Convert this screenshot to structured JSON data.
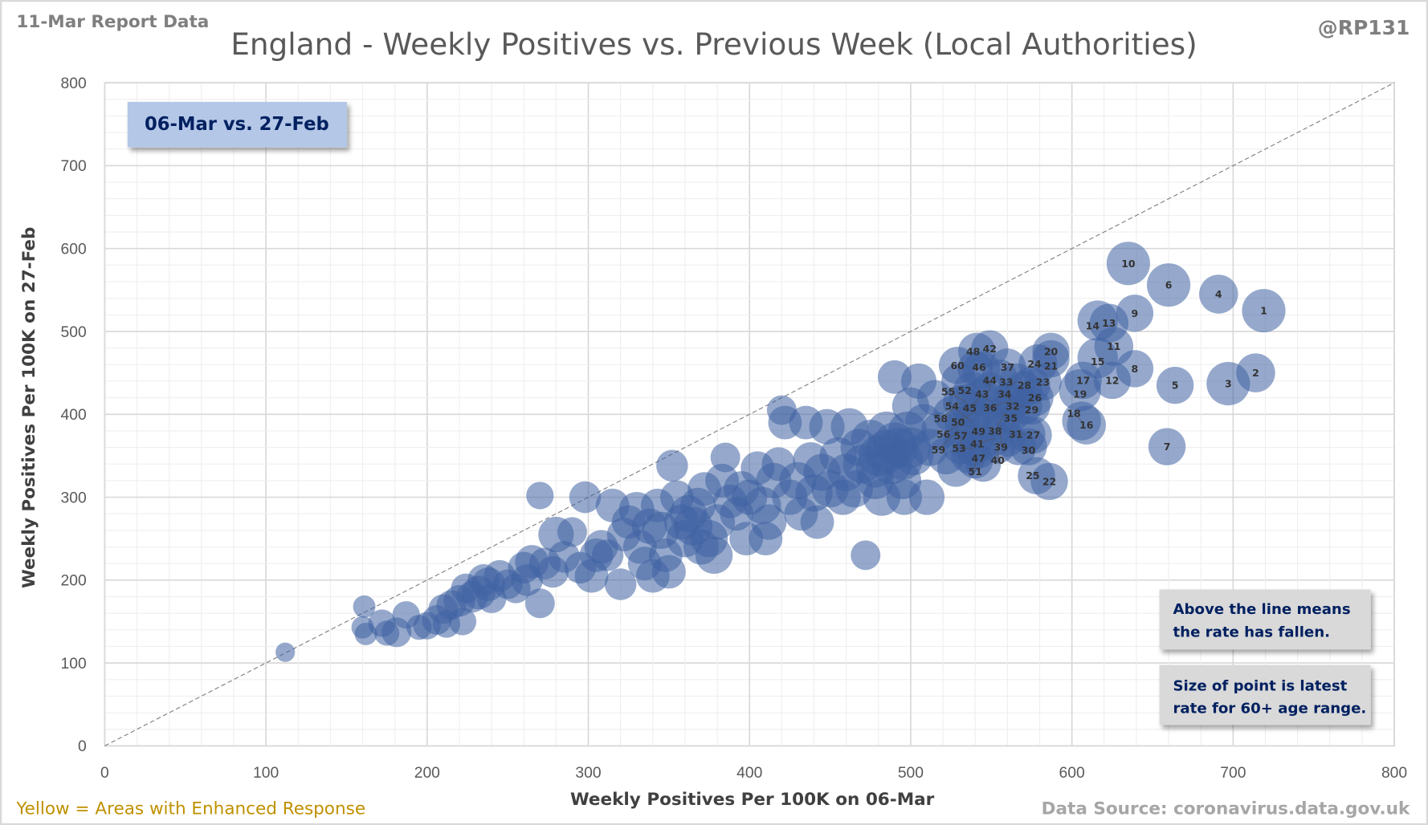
{
  "header": {
    "report_label": "11-Mar Report Data",
    "author": "@RP131"
  },
  "footer": {
    "note": "Yellow = Areas with Enhanced  Response",
    "source": "Data Source: coronavirus.data.gov.uk"
  },
  "colors": {
    "bubble": "#3f63a3",
    "annotation_box": "#b4c7e7",
    "note_box": "#d9d9d9",
    "annotation_text": "#002060",
    "footer_note": "#bf9000"
  },
  "chart_data": {
    "type": "scatter",
    "title": "England - Weekly Positives vs. Previous Week (Local Authorities)",
    "xlabel": "Weekly Positives Per 100K on 06-Mar",
    "ylabel": "Weekly Positives Per 100K on 27-Feb",
    "xlim": [
      0,
      800
    ],
    "ylim": [
      0,
      800
    ],
    "xticks": [
      "0",
      "100",
      "200",
      "300",
      "400",
      "500",
      "600",
      "700",
      "800"
    ],
    "yticks": [
      "0",
      "100",
      "200",
      "300",
      "400",
      "500",
      "600",
      "700",
      "800"
    ],
    "grid": true,
    "reference_line": "y = x (dashed)",
    "bubble_size_meaning": "latest rate for 60+ age range",
    "annotations": {
      "period": "06-Mar vs. 27-Feb",
      "above_line_1": "Above the line means",
      "above_line_2": "the rate has fallen.",
      "size_1": "Size of point is latest",
      "size_2": "rate for 60+ age range."
    },
    "labeled_points": [
      [
        719,
        525,
        150,
        "1"
      ],
      [
        714,
        450,
        120,
        "2"
      ],
      [
        697,
        437,
        150,
        "3"
      ],
      [
        691,
        545,
        120,
        "4"
      ],
      [
        664,
        435,
        110,
        "5"
      ],
      [
        660,
        556,
        150,
        "6"
      ],
      [
        659,
        361,
        110,
        "7"
      ],
      [
        639,
        455,
        110,
        "8"
      ],
      [
        639,
        522,
        110,
        "9"
      ],
      [
        635,
        582,
        150,
        "10"
      ],
      [
        626,
        482,
        120,
        "11"
      ],
      [
        625,
        441,
        110,
        "12"
      ],
      [
        623,
        510,
        120,
        "13"
      ],
      [
        616,
        513,
        130,
        "14"
      ],
      [
        616,
        468,
        130,
        "15"
      ],
      [
        609,
        387,
        120,
        "16"
      ],
      [
        607,
        441,
        110,
        "17"
      ],
      [
        606,
        392,
        120,
        "18"
      ],
      [
        605,
        429,
        140,
        "19"
      ],
      [
        587,
        476,
        110,
        "20"
      ],
      [
        587,
        467,
        110,
        "21"
      ],
      [
        586,
        319,
        110,
        "22"
      ],
      [
        582,
        439,
        110,
        "23"
      ],
      [
        579,
        461,
        120,
        "24"
      ],
      [
        578,
        326,
        110,
        "25"
      ],
      [
        577,
        420,
        110,
        "26"
      ],
      [
        576,
        375,
        110,
        "27"
      ],
      [
        575,
        435,
        110,
        "28"
      ],
      [
        575,
        410,
        110,
        "29"
      ],
      [
        573,
        361,
        110,
        "30"
      ],
      [
        572,
        376,
        110,
        "31"
      ],
      [
        570,
        410,
        110,
        "32"
      ],
      [
        566,
        439,
        110,
        "33"
      ],
      [
        563,
        415,
        110,
        "34"
      ],
      [
        562,
        400,
        110,
        "35"
      ],
      [
        560,
        415,
        110,
        "36"
      ],
      [
        560,
        457,
        110,
        "37"
      ],
      [
        559,
        403,
        110,
        "38"
      ],
      [
        556,
        387,
        110,
        "39"
      ],
      [
        554,
        362,
        100,
        "40"
      ],
      [
        552,
        371,
        100,
        "41"
      ],
      [
        549,
        479,
        110,
        "42"
      ],
      [
        549,
        415,
        110,
        "43"
      ],
      [
        549,
        428,
        110,
        "44"
      ],
      [
        543,
        420,
        110,
        "45"
      ],
      [
        544,
        454,
        110,
        "46"
      ],
      [
        542,
        356,
        100,
        "47"
      ],
      [
        541,
        476,
        110,
        "48"
      ],
      [
        542,
        375,
        100,
        "49"
      ],
      [
        541,
        404,
        110,
        "50"
      ],
      [
        540,
        344,
        100,
        "51"
      ],
      [
        538,
        429,
        110,
        "52"
      ],
      [
        539,
        359,
        100,
        "53"
      ],
      [
        538,
        391,
        110,
        "54"
      ],
      [
        535,
        414,
        110,
        "55"
      ],
      [
        532,
        389,
        100,
        "56"
      ],
      [
        531,
        361,
        100,
        "57"
      ],
      [
        531,
        414,
        100,
        "58"
      ],
      [
        530,
        382,
        100,
        "59"
      ],
      [
        529,
        459,
        110,
        "60"
      ]
    ],
    "other_points": [
      [
        112,
        113,
        30
      ],
      [
        161,
        168,
        40
      ],
      [
        160,
        143,
        40
      ],
      [
        162,
        135,
        40
      ],
      [
        172,
        148,
        60
      ],
      [
        175,
        136,
        50
      ],
      [
        181,
        137,
        70
      ],
      [
        187,
        158,
        60
      ],
      [
        195,
        143,
        50
      ],
      [
        200,
        145,
        60
      ],
      [
        206,
        152,
        70
      ],
      [
        210,
        165,
        70
      ],
      [
        212,
        147,
        60
      ],
      [
        215,
        170,
        70
      ],
      [
        220,
        175,
        80
      ],
      [
        222,
        150,
        60
      ],
      [
        224,
        190,
        70
      ],
      [
        228,
        180,
        80
      ],
      [
        232,
        185,
        90
      ],
      [
        235,
        200,
        80
      ],
      [
        238,
        195,
        90
      ],
      [
        240,
        178,
        70
      ],
      [
        245,
        205,
        80
      ],
      [
        250,
        195,
        70
      ],
      [
        255,
        190,
        70
      ],
      [
        260,
        215,
        80
      ],
      [
        262,
        200,
        80
      ],
      [
        265,
        222,
        90
      ],
      [
        270,
        172,
        70
      ],
      [
        270,
        302,
        60
      ],
      [
        273,
        220,
        80
      ],
      [
        278,
        210,
        80
      ],
      [
        280,
        255,
        100
      ],
      [
        285,
        228,
        80
      ],
      [
        290,
        258,
        70
      ],
      [
        295,
        215,
        80
      ],
      [
        298,
        300,
        80
      ],
      [
        302,
        205,
        90
      ],
      [
        305,
        230,
        90
      ],
      [
        308,
        240,
        90
      ],
      [
        312,
        230,
        80
      ],
      [
        315,
        290,
        90
      ],
      [
        320,
        195,
        80
      ],
      [
        322,
        255,
        90
      ],
      [
        325,
        270,
        90
      ],
      [
        330,
        285,
        100
      ],
      [
        332,
        240,
        90
      ],
      [
        335,
        220,
        90
      ],
      [
        338,
        265,
        100
      ],
      [
        340,
        205,
        90
      ],
      [
        343,
        290,
        90
      ],
      [
        345,
        260,
        110
      ],
      [
        348,
        230,
        90
      ],
      [
        350,
        210,
        90
      ],
      [
        352,
        338,
        80
      ],
      [
        355,
        300,
        90
      ],
      [
        358,
        270,
        100
      ],
      [
        360,
        250,
        110
      ],
      [
        362,
        280,
        110
      ],
      [
        365,
        265,
        120
      ],
      [
        368,
        290,
        100
      ],
      [
        370,
        240,
        100
      ],
      [
        372,
        310,
        90
      ],
      [
        375,
        250,
        110
      ],
      [
        378,
        230,
        110
      ],
      [
        380,
        270,
        100
      ],
      [
        383,
        320,
        90
      ],
      [
        385,
        348,
        70
      ],
      [
        388,
        295,
        90
      ],
      [
        392,
        280,
        90
      ],
      [
        395,
        310,
        100
      ],
      [
        398,
        250,
        90
      ],
      [
        400,
        300,
        100
      ],
      [
        405,
        335,
        90
      ],
      [
        408,
        290,
        110
      ],
      [
        410,
        250,
        90
      ],
      [
        412,
        270,
        100
      ],
      [
        415,
        320,
        100
      ],
      [
        418,
        340,
        90
      ],
      [
        420,
        405,
        70
      ],
      [
        422,
        390,
        90
      ],
      [
        425,
        300,
        100
      ],
      [
        430,
        320,
        110
      ],
      [
        432,
        280,
        90
      ],
      [
        435,
        390,
        90
      ],
      [
        438,
        345,
        100
      ],
      [
        440,
        305,
        110
      ],
      [
        442,
        270,
        90
      ],
      [
        445,
        330,
        110
      ],
      [
        448,
        385,
        100
      ],
      [
        450,
        310,
        110
      ],
      [
        455,
        350,
        110
      ],
      [
        458,
        300,
        100
      ],
      [
        460,
        330,
        110
      ],
      [
        462,
        385,
        110
      ],
      [
        465,
        310,
        110
      ],
      [
        468,
        360,
        110
      ],
      [
        470,
        340,
        120
      ],
      [
        472,
        230,
        70
      ],
      [
        475,
        370,
        120
      ],
      [
        478,
        320,
        110
      ],
      [
        480,
        350,
        130
      ],
      [
        482,
        300,
        110
      ],
      [
        485,
        380,
        120
      ],
      [
        488,
        340,
        130
      ],
      [
        490,
        445,
        90
      ],
      [
        492,
        360,
        130
      ],
      [
        495,
        320,
        110
      ],
      [
        496,
        300,
        100
      ],
      [
        498,
        380,
        120
      ],
      [
        500,
        410,
        110
      ],
      [
        502,
        350,
        120
      ],
      [
        505,
        440,
        100
      ],
      [
        508,
        390,
        110
      ],
      [
        510,
        300,
        100
      ],
      [
        512,
        360,
        110
      ],
      [
        515,
        420,
        100
      ],
      [
        518,
        380,
        110
      ],
      [
        522,
        350,
        110
      ],
      [
        525,
        400,
        100
      ],
      [
        528,
        335,
        110
      ],
      [
        530,
        440,
        100
      ],
      [
        533,
        370,
        110
      ],
      [
        536,
        350,
        100
      ],
      [
        540,
        455,
        100
      ],
      [
        545,
        340,
        100
      ],
      [
        550,
        390,
        110
      ],
      [
        555,
        445,
        100
      ],
      [
        560,
        370,
        100
      ],
      [
        567,
        360,
        100
      ],
      [
        570,
        430,
        110
      ],
      [
        485,
        355,
        150
      ],
      [
        490,
        365,
        140
      ],
      [
        495,
        345,
        130
      ],
      [
        478,
        335,
        120
      ],
      [
        500,
        360,
        130
      ]
    ]
  }
}
